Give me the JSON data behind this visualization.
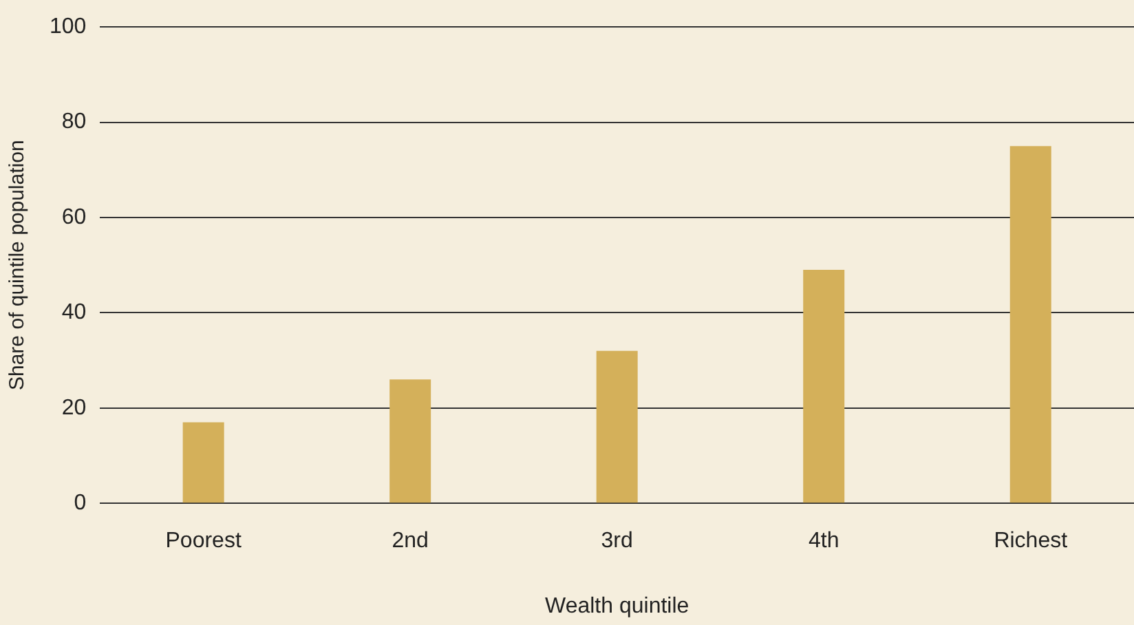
{
  "chart_data": {
    "type": "bar",
    "xlabel": "Wealth quintile",
    "ylabel": "Share of quintile population",
    "categories": [
      "Poorest",
      "2nd",
      "3rd",
      "4th",
      "Richest"
    ],
    "values": [
      17,
      26,
      32,
      49,
      75
    ],
    "color": "#d4b05a",
    "ylim": [
      0,
      100
    ],
    "yticks": [
      0,
      20,
      40,
      60,
      80,
      100
    ],
    "grid": "y",
    "legend": false
  }
}
